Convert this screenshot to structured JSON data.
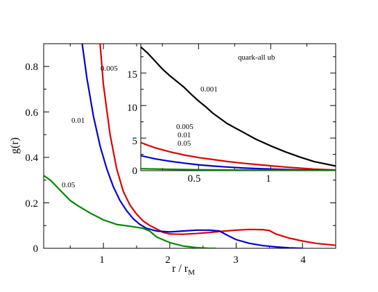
{
  "chart_data": [
    {
      "type": "line",
      "xlabel": "r / r",
      "xlabel_sub": "M",
      "ylabel": "g(r)",
      "xlim": [
        0.1,
        4.5
      ],
      "ylim": [
        0,
        0.9
      ],
      "xticks": [
        "1",
        "2",
        "3",
        "4"
      ],
      "yticks": [
        "0",
        "0.2",
        "0.4",
        "0.6",
        "0.8"
      ],
      "series": [
        {
          "color": "#dd0000",
          "label": "0.005",
          "x": [
            0.95,
            1.0,
            1.1,
            1.2,
            1.3,
            1.4,
            1.5,
            1.6,
            1.7,
            1.8,
            1.9,
            2.0,
            2.2,
            2.4,
            2.6,
            2.8,
            3.0,
            3.2,
            3.4,
            3.5,
            3.6,
            3.8,
            4.0,
            4.2,
            4.5
          ],
          "y": [
            0.9,
            0.72,
            0.5,
            0.35,
            0.25,
            0.19,
            0.15,
            0.12,
            0.1,
            0.085,
            0.07,
            0.063,
            0.062,
            0.065,
            0.07,
            0.075,
            0.08,
            0.083,
            0.082,
            0.078,
            0.063,
            0.045,
            0.032,
            0.022,
            0.013
          ]
        },
        {
          "color": "#0000cc",
          "label": "0.01",
          "x": [
            0.68,
            0.75,
            0.85,
            0.95,
            1.05,
            1.15,
            1.25,
            1.35,
            1.45,
            1.55,
            1.65,
            1.8,
            2.0,
            2.2,
            2.4,
            2.6,
            2.75,
            2.85,
            3.0,
            3.2,
            3.4,
            3.6,
            3.8,
            4.0
          ],
          "y": [
            0.9,
            0.75,
            0.58,
            0.45,
            0.35,
            0.27,
            0.21,
            0.165,
            0.13,
            0.105,
            0.088,
            0.076,
            0.072,
            0.076,
            0.08,
            0.08,
            0.076,
            0.06,
            0.038,
            0.022,
            0.012,
            0.006,
            0.002,
            0.0
          ]
        },
        {
          "color": "#008800",
          "label": "0.05",
          "x": [
            0.1,
            0.2,
            0.3,
            0.4,
            0.5,
            0.6,
            0.8,
            1.0,
            1.2,
            1.4,
            1.6,
            1.7,
            1.8,
            2.0,
            2.2,
            2.4,
            2.6,
            2.7
          ],
          "y": [
            0.32,
            0.3,
            0.27,
            0.24,
            0.21,
            0.19,
            0.155,
            0.125,
            0.105,
            0.097,
            0.088,
            0.075,
            0.05,
            0.025,
            0.01,
            0.003,
            0.0,
            0.0
          ]
        }
      ]
    },
    {
      "type": "line",
      "title": "quark-all ub",
      "xlim": [
        0.1,
        1.45
      ],
      "ylim": [
        0,
        19.5
      ],
      "xticks": [
        "0.5",
        "1"
      ],
      "yticks": [
        "0",
        "5",
        "10",
        "15"
      ],
      "series": [
        {
          "color": "#000000",
          "label": "0.001",
          "x": [
            0.1,
            0.15,
            0.2,
            0.25,
            0.3,
            0.35,
            0.4,
            0.45,
            0.5,
            0.55,
            0.6,
            0.65,
            0.7,
            0.8,
            0.9,
            1.0,
            1.1,
            1.2,
            1.3,
            1.45
          ],
          "y": [
            19.0,
            18.0,
            16.8,
            15.6,
            14.6,
            13.7,
            12.8,
            11.7,
            10.7,
            9.8,
            8.8,
            8.0,
            7.2,
            6.0,
            4.8,
            3.8,
            2.9,
            2.1,
            1.4,
            0.7
          ]
        },
        {
          "color": "#dd0000",
          "label": "0.005",
          "x": [
            0.1,
            0.2,
            0.3,
            0.4,
            0.5,
            0.6,
            0.7,
            0.8,
            0.9,
            1.0,
            1.1,
            1.2,
            1.3,
            1.45
          ],
          "y": [
            4.3,
            3.5,
            2.9,
            2.4,
            2.0,
            1.7,
            1.4,
            1.15,
            0.95,
            0.75,
            0.55,
            0.38,
            0.22,
            0.1
          ]
        },
        {
          "color": "#0000cc",
          "label": "0.01",
          "x": [
            0.1,
            0.2,
            0.3,
            0.4,
            0.5,
            0.6,
            0.7,
            0.8,
            0.9,
            1.0,
            1.1,
            1.2,
            1.3,
            1.45
          ],
          "y": [
            2.3,
            1.8,
            1.45,
            1.15,
            0.9,
            0.7,
            0.55,
            0.42,
            0.32,
            0.24,
            0.17,
            0.11,
            0.06,
            0.03
          ]
        },
        {
          "color": "#008800",
          "label": "0.05",
          "x": [
            0.1,
            0.3,
            0.5,
            0.7,
            0.9,
            1.1,
            1.3,
            1.45
          ],
          "y": [
            0.3,
            0.2,
            0.14,
            0.1,
            0.07,
            0.05,
            0.03,
            0.02
          ]
        }
      ]
    }
  ]
}
